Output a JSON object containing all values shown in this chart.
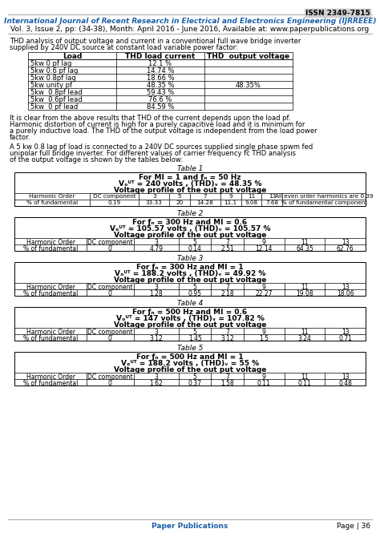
{
  "issn": "ISSN 2349-7815",
  "journal_title": "International Journal of Recent Research in Electrical and Electronics Engineering (IJRREEE)",
  "journal_sub": "Vol. 3, Issue 2, pp: (34-38), Month: April 2016 - June 2016, Available at: www.paperpublications.org",
  "journal_url": "www.paperpublications.org",
  "para1": "THD analysis of output voltage and current in a conventional full wave bridge inverter supplied by 240V DC source at constant load variable power factor:",
  "table0_headers": [
    "Load",
    "THD load current",
    "THD  output voltage"
  ],
  "table0_rows": [
    [
      "5kw 0 pf lag",
      "12.1 %",
      ""
    ],
    [
      "5kw 0.6 pf lag",
      "14.74 %",
      ""
    ],
    [
      "5kw 0.8pf lag",
      "18.66 %",
      ""
    ],
    [
      "5kw unity pf",
      "48.35 %",
      "48.35%"
    ],
    [
      "5kw  0.8pf lead",
      "59.43 %",
      ""
    ],
    [
      "5kw  0.6pf lead",
      "76.6 %",
      ""
    ],
    [
      "5kw  0 pf lead",
      "84.59 %",
      ""
    ]
  ],
  "para2": "It is clear from the above results that THD of the current depends upon the load pf.  Harmonic distortion of current is high for a purely capacitive load and it is minimum for a purely inductive load. The THD of the output voltage is independent from the load power factor.",
  "para3": "A 5 kw 0.8 lag pf load is connected to a 240V DC sources supplied single phase spwm fed unipolar full bridge inverter. For different values of carrier frequency fc THD analysis of the output voltage is shown by the tables below:",
  "table1_label": "Table 1",
  "table1_header1": "For MI = 1 and f",
  "table1_header1b": "c",
  "table1_header1c": " = 50 Hz",
  "table1_header2": "V",
  "table1_header2b": "OUT",
  "table1_header2c": " = 240 volts , (THD)",
  "table1_header2d": "V",
  "table1_header2e": " = 48.35 %",
  "table1_header3": "Voltage profile of the out put voltage",
  "table1_cols": [
    "Harmonic Order",
    "DC component",
    "3",
    "5",
    "7",
    "9",
    "11",
    "13",
    "All even order harmonics are 0.39"
  ],
  "table1_row1": [
    "% of fundamental",
    "0.19",
    "33.33",
    "20",
    "14.28",
    "11.1",
    "9.08",
    "7.68",
    "% of fundamental component"
  ],
  "table2_label": "Table 2",
  "table2_header1": "For f",
  "table2_header1b": "c",
  "table2_header1c": " = 300 Hz and MI = 0.6",
  "table2_header2": "V",
  "table2_header2b": "OUT",
  "table2_header2c": " = 105.57 volts , (THD)",
  "table2_header2d": "V",
  "table2_header2e": " = 105.57 %",
  "table2_header3": "Voltage profile of the out put voltage",
  "table2_cols": [
    "Harmonic Order",
    "DC component",
    "3",
    "5",
    "7",
    "9",
    "11",
    "13"
  ],
  "table2_row1": [
    "% of fundamental",
    "0",
    "4.79",
    "0.14",
    "2.51",
    "12.14",
    "64.35",
    "62.76"
  ],
  "table3_label": "Table 3",
  "table3_header1": "For f",
  "table3_header1b": "c",
  "table3_header1c": " = 300 Hz and MI = 1",
  "table3_header2": "V",
  "table3_header2b": "OUT",
  "table3_header2c": " = 188.2 volts , (THD)",
  "table3_header2d": "V",
  "table3_header2e": " = 49.92 %",
  "table3_header3": "Voltage profile of the out put voltage",
  "table3_cols": [
    "Harmonic Order",
    "DC component",
    "3",
    "5",
    "7",
    "9",
    "11",
    "13"
  ],
  "table3_row1": [
    "% of fundamental",
    "0",
    "1.28",
    "0.95",
    "2.18",
    "22.27",
    "19.08",
    "18.06"
  ],
  "table4_label": "Table 4",
  "table4_header1": "For f",
  "table4_header1b": "c",
  "table4_header1c": " = 500 Hz and MI = 0.6",
  "table4_header2": "V",
  "table4_header2b": "OUT",
  "table4_header2c": " = 147 volts , (THD)",
  "table4_header2d": "V",
  "table4_header2e": " = 107.82 %",
  "table4_header3": "Voltage profile of the out put voltage",
  "table4_cols": [
    "Harmonic Order",
    "DC component",
    "3",
    "5",
    "7",
    "9",
    "11",
    "13"
  ],
  "table4_row1": [
    "% of fundamental",
    "0",
    "3.12",
    "1.45",
    "3.12",
    "1.5",
    "3.24",
    "0.71"
  ],
  "table5_label": "Table 5",
  "table5_header1": "For f",
  "table5_header1b": "c",
  "table5_header1c": " = 500 Hz and MI = 1",
  "table5_header2": "V",
  "table5_header2b": "OUT",
  "table5_header2c": " = 188.2 volts , (THD)",
  "table5_header2d": "V",
  "table5_header2e": " = 55 %",
  "table5_header3": "Voltage profile of the out put voltage",
  "table5_cols": [
    "Harmonic Order",
    "DC component",
    "3",
    "5",
    "7",
    "9",
    "11",
    "13"
  ],
  "table5_row1": [
    "% of fundamental",
    "0",
    "1.62",
    "0.37",
    "1.58",
    "0.11",
    "0.11",
    "0.48"
  ],
  "page_footer": "Page | 36",
  "footer_pub": "Paper Publications"
}
